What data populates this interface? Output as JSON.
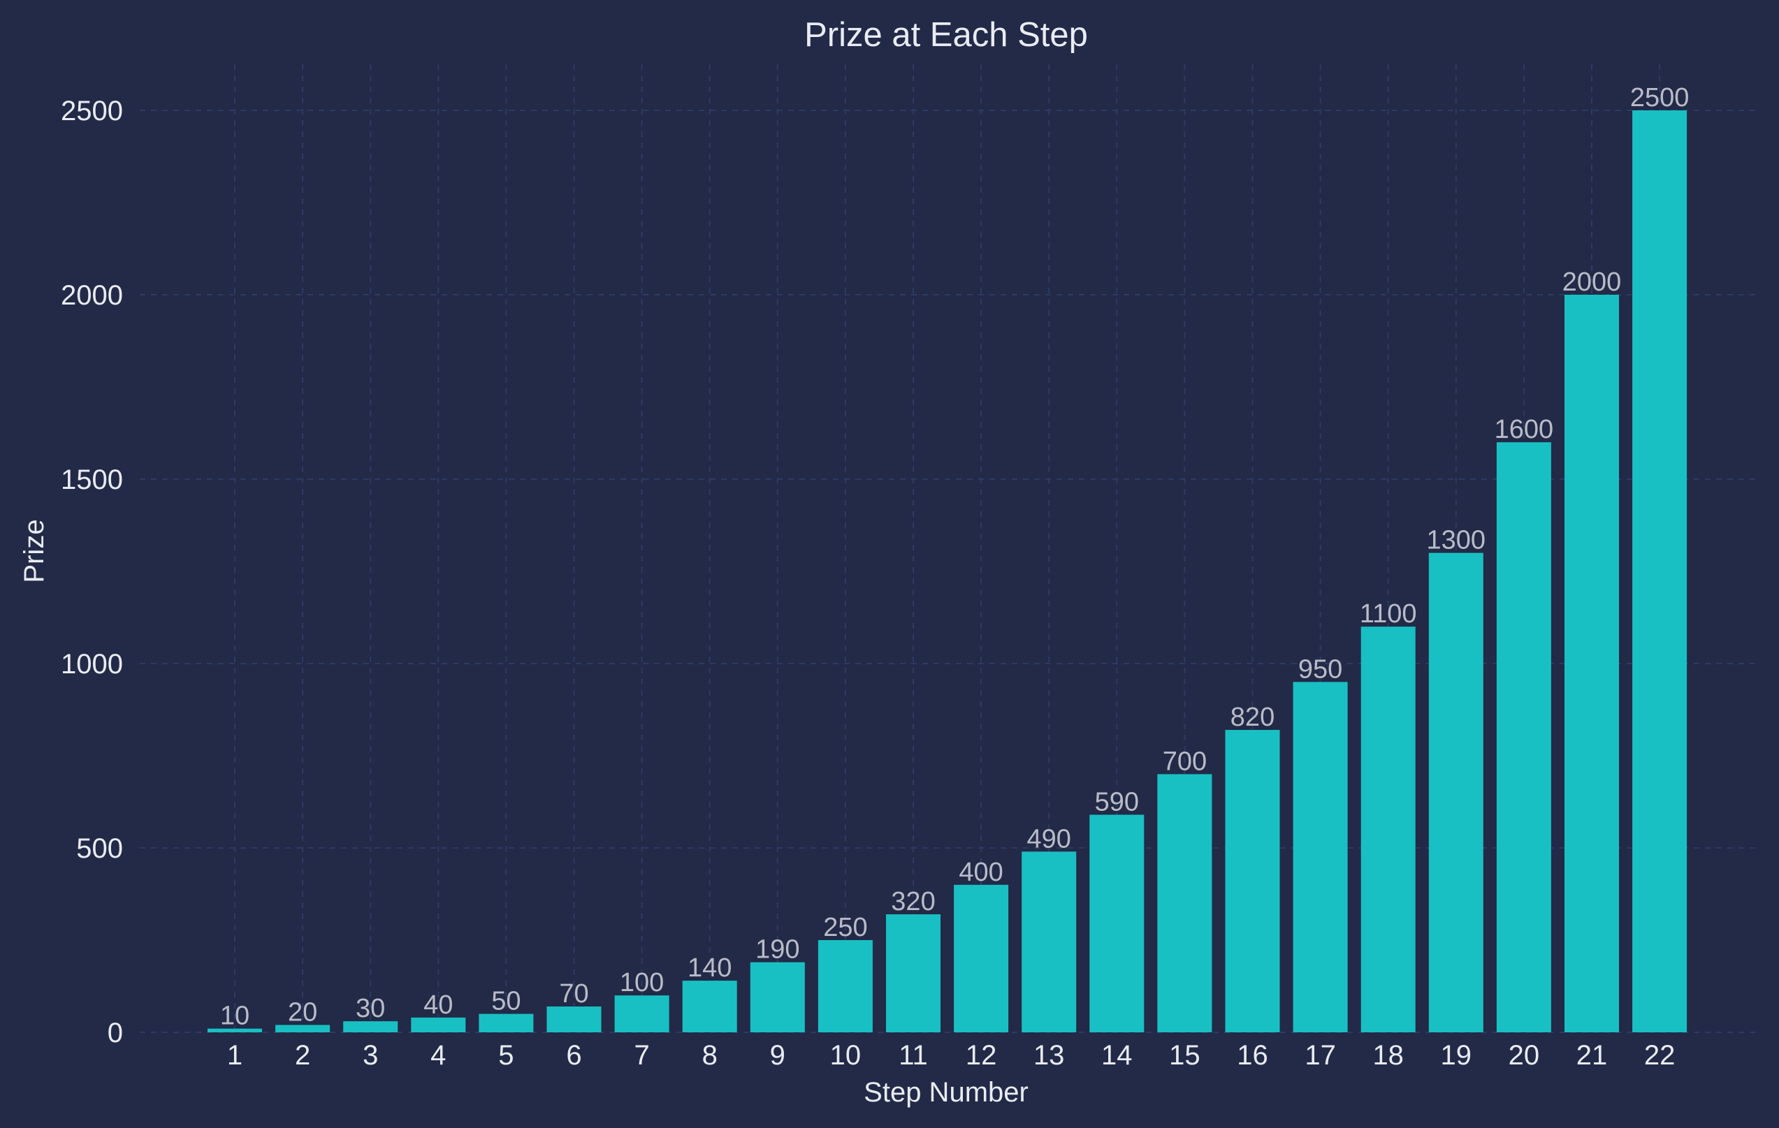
{
  "chart_data": {
    "type": "bar",
    "title": "Prize at Each Step",
    "xlabel": "Step Number",
    "ylabel": "Prize",
    "categories": [
      "1",
      "2",
      "3",
      "4",
      "5",
      "6",
      "7",
      "8",
      "9",
      "10",
      "11",
      "12",
      "13",
      "14",
      "15",
      "16",
      "17",
      "18",
      "19",
      "20",
      "21",
      "22"
    ],
    "values": [
      10,
      20,
      30,
      40,
      50,
      70,
      100,
      140,
      190,
      250,
      320,
      400,
      490,
      590,
      700,
      820,
      950,
      1100,
      1300,
      1600,
      2000,
      2500
    ],
    "ylim": [
      0,
      2600
    ],
    "yticks": [
      0,
      500,
      1000,
      1500,
      2000,
      2500
    ],
    "grid": true,
    "colors": {
      "background": "#222a47",
      "bar": "#19c0c3",
      "text": "#e9ecf4",
      "data_label": "#b9bcc8",
      "grid": "#2e3a63"
    }
  }
}
